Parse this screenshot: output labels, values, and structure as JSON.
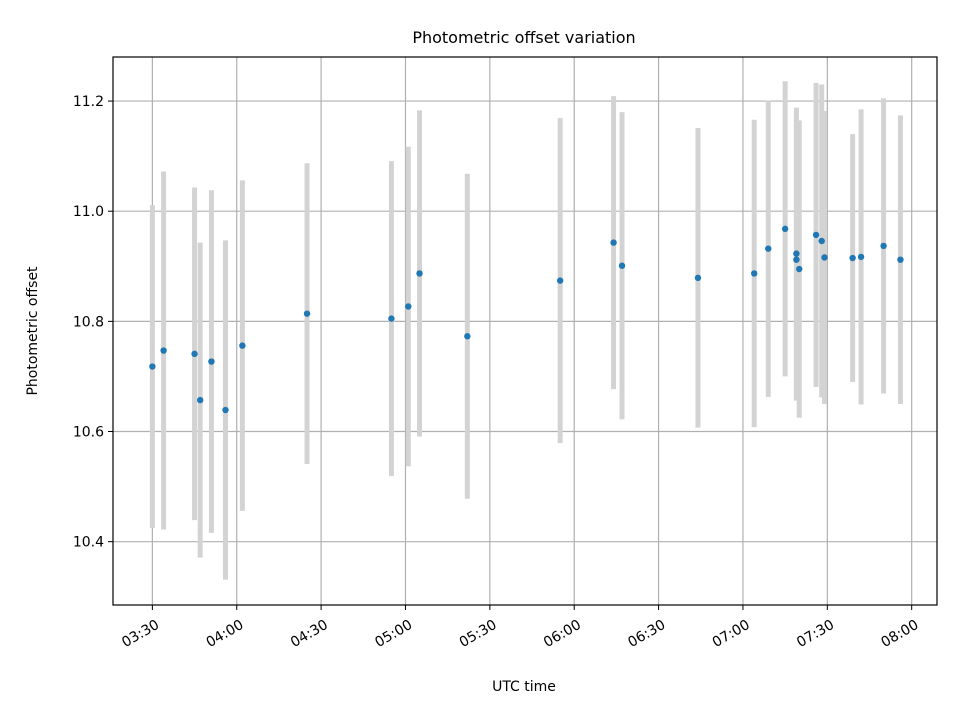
{
  "chart_data": {
    "type": "scatter",
    "title": "Photometric offset variation",
    "xlabel": "UTC time",
    "ylabel": "Photometric offset",
    "xlim": [
      "03:16",
      "08:09"
    ],
    "ylim": [
      10.285,
      11.28
    ],
    "x_ticks": [
      "03:30",
      "04:00",
      "04:30",
      "05:00",
      "05:30",
      "06:00",
      "06:30",
      "07:00",
      "07:30",
      "08:00"
    ],
    "y_ticks": [
      10.4,
      10.6,
      10.8,
      11.0,
      11.2
    ],
    "y_tick_labels": [
      "10.4",
      "10.6",
      "10.8",
      "11.0",
      "11.2"
    ],
    "grid": true,
    "marker_color": "#1f77b4",
    "errorbar_color": "#d3d3d3",
    "series": [
      {
        "points": [
          {
            "x": "03:30",
            "y": 10.718,
            "err": 0.293
          },
          {
            "x": "03:34",
            "y": 10.747,
            "err": 0.325
          },
          {
            "x": "03:45",
            "y": 10.741,
            "err": 0.302
          },
          {
            "x": "03:47",
            "y": 10.657,
            "err": 0.286
          },
          {
            "x": "03:51",
            "y": 10.727,
            "err": 0.311
          },
          {
            "x": "03:56",
            "y": 10.639,
            "err": 0.308
          },
          {
            "x": "04:02",
            "y": 10.756,
            "err": 0.3
          },
          {
            "x": "04:25",
            "y": 10.814,
            "err": 0.273
          },
          {
            "x": "04:55",
            "y": 10.805,
            "err": 0.286
          },
          {
            "x": "05:01",
            "y": 10.827,
            "err": 0.29
          },
          {
            "x": "05:05",
            "y": 10.887,
            "err": 0.296
          },
          {
            "x": "05:22",
            "y": 10.773,
            "err": 0.295
          },
          {
            "x": "05:55",
            "y": 10.874,
            "err": 0.295
          },
          {
            "x": "06:14",
            "y": 10.943,
            "err": 0.266
          },
          {
            "x": "06:17",
            "y": 10.901,
            "err": 0.279
          },
          {
            "x": "06:44",
            "y": 10.879,
            "err": 0.272
          },
          {
            "x": "07:04",
            "y": 10.887,
            "err": 0.279
          },
          {
            "x": "07:09",
            "y": 10.932,
            "err": 0.269
          },
          {
            "x": "07:15",
            "y": 10.968,
            "err": 0.268
          },
          {
            "x": "07:19",
            "y": 10.912,
            "err": 0.256
          },
          {
            "x": "07:19",
            "y": 10.923,
            "err": 0.265
          },
          {
            "x": "07:20",
            "y": 10.895,
            "err": 0.27
          },
          {
            "x": "07:26",
            "y": 10.957,
            "err": 0.276
          },
          {
            "x": "07:28",
            "y": 10.946,
            "err": 0.284
          },
          {
            "x": "07:29",
            "y": 10.916,
            "err": 0.266
          },
          {
            "x": "07:39",
            "y": 10.915,
            "err": 0.225
          },
          {
            "x": "07:42",
            "y": 10.917,
            "err": 0.268
          },
          {
            "x": "07:50",
            "y": 10.937,
            "err": 0.268
          },
          {
            "x": "07:56",
            "y": 10.912,
            "err": 0.262
          }
        ]
      }
    ]
  }
}
